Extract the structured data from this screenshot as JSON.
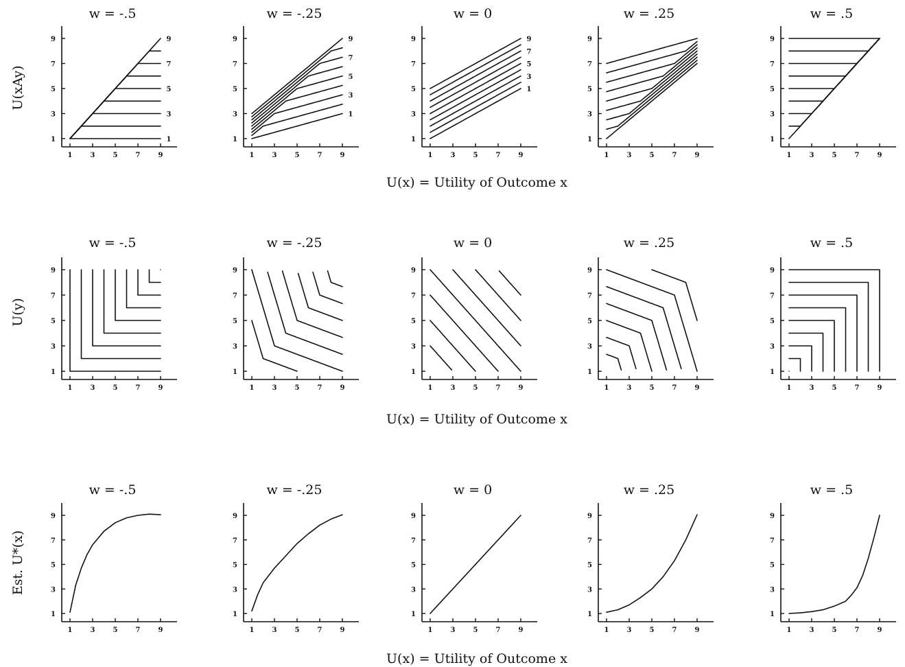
{
  "figure": {
    "rows": [
      {
        "ylabel": "U(xAy)",
        "xlabel": "U(x) = Utility of Outcome  x"
      },
      {
        "ylabel": "U(y)",
        "xlabel": "U(x) = Utility of Outcome  x"
      },
      {
        "ylabel": "Est. U*(x)",
        "xlabel": "U(x) = Utility of Outcome  x"
      }
    ],
    "ticks": [
      "1",
      "3",
      "5",
      "7",
      "9"
    ],
    "curve_labels": [
      "1",
      "3",
      "5",
      "7",
      "9"
    ]
  },
  "chart_data": [
    {
      "type": "line",
      "row": "main-effects",
      "description_in_figure": "U(xAy) vs U(x), one line per U(y) = 1..9",
      "panels": [
        {
          "title": "w = -.5",
          "w": -0.5
        },
        {
          "title": "w = -.25",
          "w": -0.25
        },
        {
          "title": "w = 0",
          "w": 0
        },
        {
          "title": "w = .25",
          "w": 0.25
        },
        {
          "title": "w = .5",
          "w": 0.5
        }
      ],
      "x": [
        1,
        2,
        3,
        4,
        5,
        6,
        7,
        8,
        9
      ],
      "series_y_values": [
        1,
        2,
        3,
        4,
        5,
        6,
        7,
        8,
        9
      ],
      "labeled_series": [
        1,
        3,
        5,
        7,
        9
      ],
      "xlim": [
        0,
        10
      ],
      "ylim": [
        0,
        10
      ],
      "grid": false
    },
    {
      "type": "line",
      "row": "indifference-curves",
      "description_in_figure": "U(y) vs U(x) indifference curves",
      "panels": [
        {
          "title": "w = -.5",
          "w": -0.5
        },
        {
          "title": "w = -.25",
          "w": -0.25
        },
        {
          "title": "w = 0",
          "w": 0
        },
        {
          "title": "w = .25",
          "w": 0.25
        },
        {
          "title": "w = .5",
          "w": 0.5
        }
      ],
      "levels": [
        1,
        2,
        3,
        4,
        5,
        6,
        7,
        8,
        9
      ],
      "xlim": [
        0,
        10
      ],
      "ylim": [
        0,
        10
      ],
      "grid": false
    },
    {
      "type": "line",
      "row": "estimated-utility",
      "description_in_figure": "Est. U*(x) vs U(x)",
      "panels": [
        {
          "title": "w = -.5",
          "w": -0.5,
          "points": [
            [
              1,
              1.1
            ],
            [
              1.5,
              3.3
            ],
            [
              2,
              4.7
            ],
            [
              2.5,
              5.8
            ],
            [
              3,
              6.6
            ],
            [
              4,
              7.7
            ],
            [
              5,
              8.4
            ],
            [
              6,
              8.8
            ],
            [
              7,
              9.0
            ],
            [
              8,
              9.1
            ],
            [
              9,
              9.05
            ]
          ]
        },
        {
          "title": "w = -.25",
          "w": -0.25,
          "points": [
            [
              1,
              1.2
            ],
            [
              1.5,
              2.5
            ],
            [
              2,
              3.5
            ],
            [
              3,
              4.7
            ],
            [
              4,
              5.7
            ],
            [
              5,
              6.7
            ],
            [
              6,
              7.5
            ],
            [
              7,
              8.2
            ],
            [
              8,
              8.7
            ],
            [
              9,
              9.05
            ]
          ]
        },
        {
          "title": "w = 0",
          "w": 0,
          "points": [
            [
              1,
              1
            ],
            [
              9,
              9
            ]
          ]
        },
        {
          "title": "w = .25",
          "w": 0.25,
          "points": [
            [
              1,
              1.1
            ],
            [
              2,
              1.3
            ],
            [
              3,
              1.7
            ],
            [
              4,
              2.3
            ],
            [
              5,
              3.0
            ],
            [
              6,
              4.0
            ],
            [
              7,
              5.3
            ],
            [
              8,
              7.0
            ],
            [
              9,
              9.05
            ]
          ]
        },
        {
          "title": "w = .5",
          "w": 0.5,
          "points": [
            [
              1,
              1.0
            ],
            [
              2,
              1.05
            ],
            [
              3,
              1.15
            ],
            [
              4,
              1.3
            ],
            [
              5,
              1.6
            ],
            [
              6,
              2.0
            ],
            [
              6.5,
              2.5
            ],
            [
              7,
              3.1
            ],
            [
              7.5,
              4.1
            ],
            [
              8,
              5.5
            ],
            [
              8.5,
              7.2
            ],
            [
              9,
              9.0
            ]
          ]
        }
      ],
      "xlim": [
        0,
        10
      ],
      "ylim": [
        0,
        10
      ],
      "grid": false
    }
  ]
}
